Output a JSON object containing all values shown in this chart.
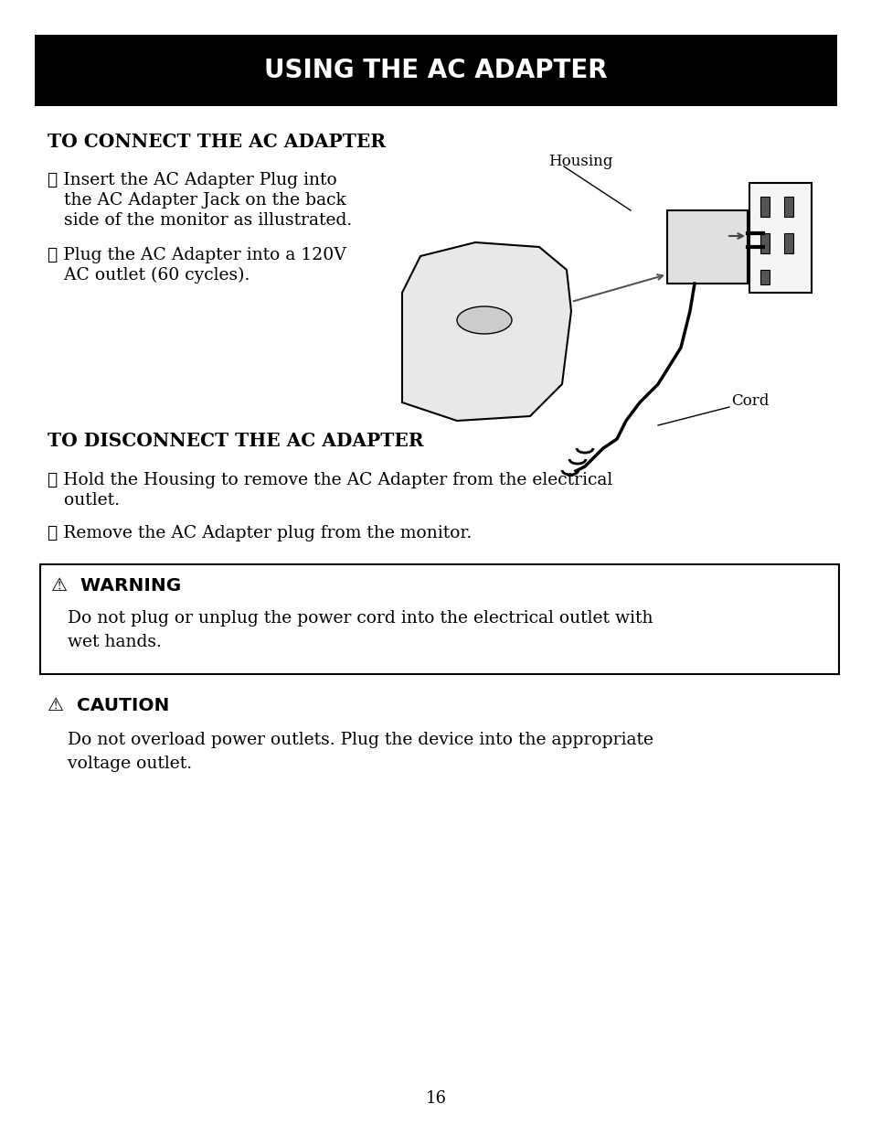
{
  "title": "USING THE AC ADAPTER",
  "title_bg": "#000000",
  "title_color": "#ffffff",
  "title_fontsize": 20,
  "page_bg": "#ffffff",
  "page_number": "16",
  "section1_heading": "TO CONNECT THE AC ADAPTER",
  "section1_item1_line1": "① Insert the AC Adapter Plug into",
  "section1_item1_line2": "   the AC Adapter Jack on the back",
  "section1_item1_line3": "   side of the monitor as illustrated.",
  "section1_item2_line1": "② Plug the AC Adapter into a 120V",
  "section1_item2_line2": "   AC outlet (60 cycles).",
  "housing_label": "Housing",
  "cord_label": "Cord",
  "section2_heading": "TO DISCONNECT THE AC ADAPTER",
  "section2_item1_line1": "① Hold the Housing to remove the AC Adapter from the electrical",
  "section2_item1_line2": "   outlet.",
  "section2_item2": "② Remove the AC Adapter plug from the monitor.",
  "warning_label": "⚠  WARNING",
  "warning_body": "   Do not plug or unplug the power cord into the electrical outlet with\n   wet hands.",
  "caution_label": "⚠  CAUTION",
  "caution_body": "   Do not overload power outlets. Plug the device into the appropriate\n   voltage outlet.",
  "body_fontsize": 13.5,
  "heading_fontsize": 14.5,
  "warn_fontsize": 14.5,
  "page_num_fontsize": 13
}
